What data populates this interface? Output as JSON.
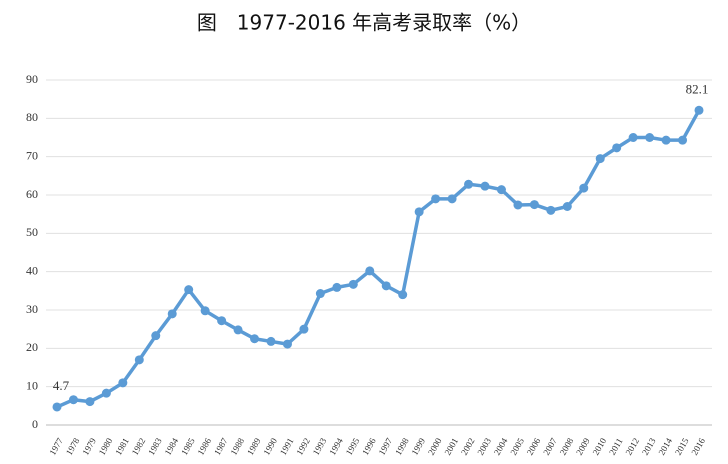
{
  "chart_data": {
    "type": "line",
    "title": "图　1977-2016 年高考录取率（%）",
    "categories": [
      "1977",
      "1978",
      "1979",
      "1980",
      "1981",
      "1982",
      "1983",
      "1984",
      "1985",
      "1986",
      "1987",
      "1988",
      "1989",
      "1990",
      "1991",
      "1992",
      "1993",
      "1994",
      "1995",
      "1996",
      "1997",
      "1998",
      "1999",
      "2000",
      "2001",
      "2002",
      "2003",
      "2004",
      "2005",
      "2006",
      "2007",
      "2008",
      "2009",
      "2010",
      "2011",
      "2012",
      "2013",
      "2014",
      "2015",
      "2016"
    ],
    "values": [
      4.7,
      6.6,
      6.1,
      8.3,
      11,
      17,
      23.3,
      29,
      35.3,
      29.8,
      27.2,
      24.8,
      22.5,
      21.8,
      21.1,
      25,
      34.3,
      35.9,
      36.7,
      40.2,
      36.3,
      34,
      55.6,
      59,
      59,
      62.8,
      62.3,
      61.4,
      57.4,
      57.5,
      56,
      57,
      61.8,
      69.5,
      72.3,
      75,
      75,
      74.3,
      74.3,
      82.1
    ],
    "color": "#5b9bd5",
    "ylim": [
      0,
      90
    ],
    "yticks": [
      0,
      10,
      20,
      30,
      40,
      50,
      60,
      70,
      80,
      90
    ],
    "grid": true
  }
}
